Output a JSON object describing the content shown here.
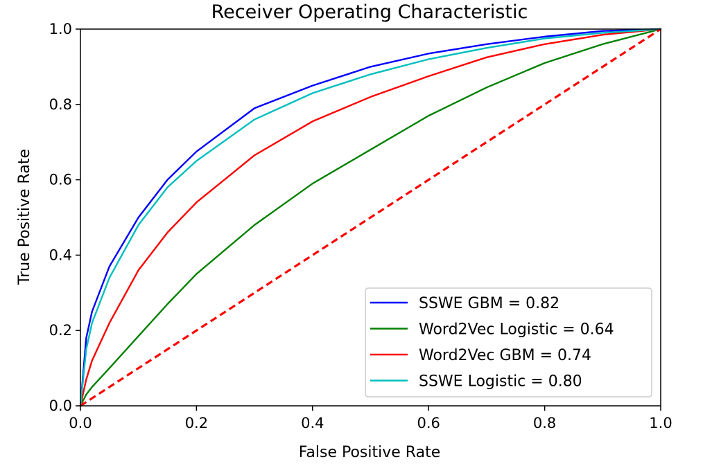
{
  "chart_data": {
    "type": "line",
    "title": "Receiver Operating Characteristic",
    "xlabel": "False Positive Rate",
    "ylabel": "True Positive Rate",
    "xlim": [
      0,
      1
    ],
    "ylim": [
      0,
      1
    ],
    "xticks": [
      "0.0",
      "0.2",
      "0.4",
      "0.6",
      "0.8",
      "1.0"
    ],
    "yticks": [
      "0.0",
      "0.2",
      "0.4",
      "0.6",
      "0.8",
      "1.0"
    ],
    "grid": false,
    "legend_position": "lower-right",
    "x": [
      0,
      0.01,
      0.02,
      0.05,
      0.1,
      0.15,
      0.2,
      0.3,
      0.4,
      0.5,
      0.6,
      0.7,
      0.8,
      0.9,
      1.0
    ],
    "series": [
      {
        "name": "SSWE GBM = 0.82",
        "color": "#0000ff",
        "values": [
          0,
          0.18,
          0.25,
          0.37,
          0.5,
          0.6,
          0.675,
          0.79,
          0.85,
          0.9,
          0.935,
          0.96,
          0.98,
          0.995,
          1.0
        ]
      },
      {
        "name": "Word2Vec Logistic = 0.64",
        "color": "#008000",
        "values": [
          0,
          0.03,
          0.05,
          0.1,
          0.185,
          0.27,
          0.35,
          0.48,
          0.59,
          0.68,
          0.77,
          0.845,
          0.91,
          0.96,
          1.0
        ]
      },
      {
        "name": "Word2Vec GBM = 0.74",
        "color": "#ff0000",
        "values": [
          0,
          0.07,
          0.12,
          0.22,
          0.36,
          0.46,
          0.54,
          0.665,
          0.755,
          0.82,
          0.875,
          0.925,
          0.96,
          0.985,
          1.0
        ]
      },
      {
        "name": "SSWE Logistic = 0.80",
        "color": "#00bfbf",
        "values": [
          0,
          0.15,
          0.22,
          0.34,
          0.48,
          0.58,
          0.65,
          0.76,
          0.83,
          0.88,
          0.92,
          0.95,
          0.975,
          0.99,
          1.0
        ]
      }
    ],
    "reference_line": {
      "x": [
        0,
        1
      ],
      "y": [
        0,
        1
      ],
      "color": "#ff0000",
      "style": "dashed"
    }
  }
}
